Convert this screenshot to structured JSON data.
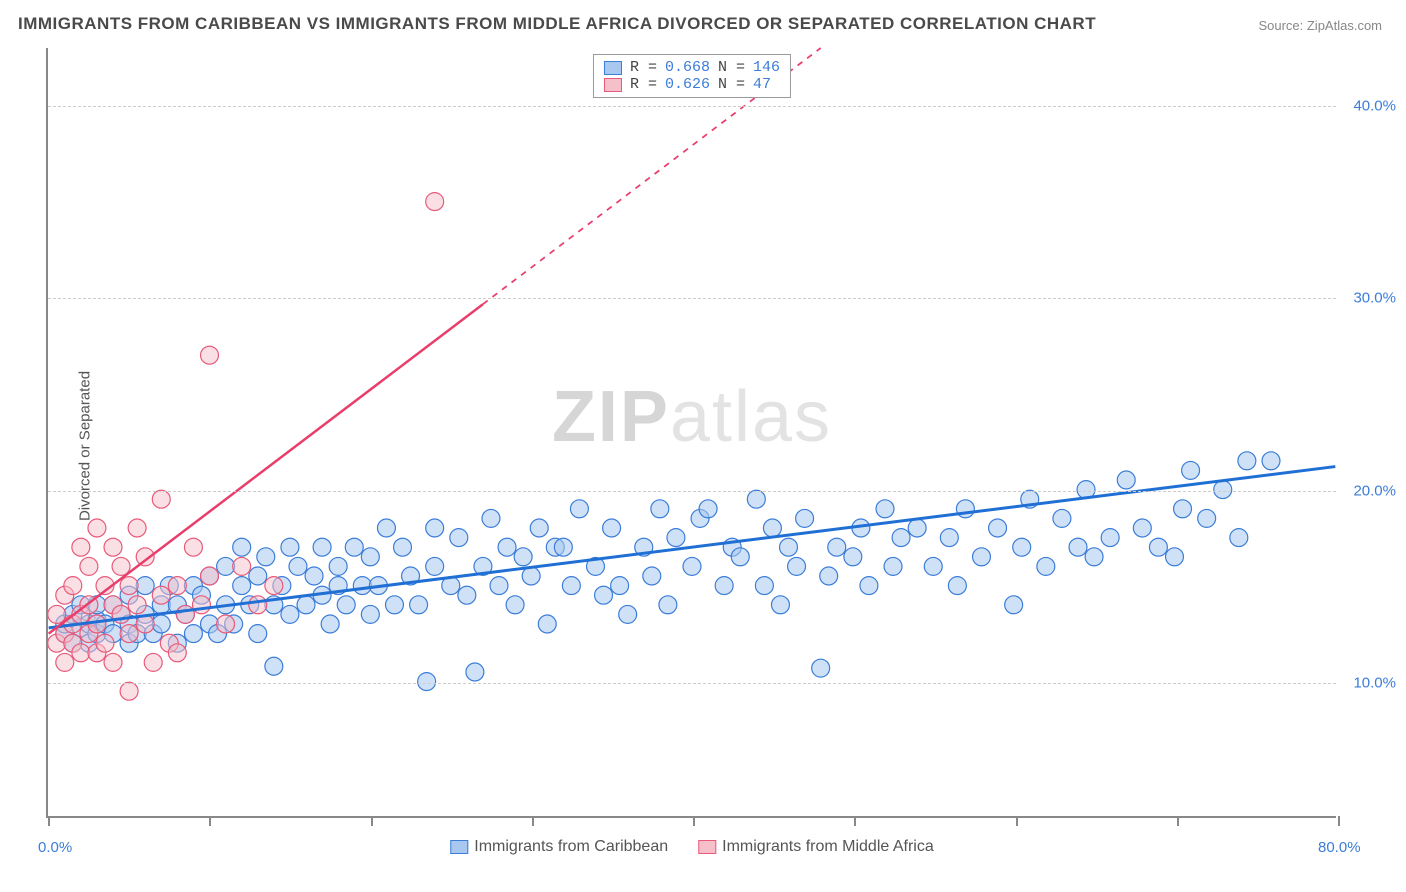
{
  "title": "IMMIGRANTS FROM CARIBBEAN VS IMMIGRANTS FROM MIDDLE AFRICA DIVORCED OR SEPARATED CORRELATION CHART",
  "source": "Source: ZipAtlas.com",
  "ylabel": "Divorced or Separated",
  "watermark_bold": "ZIP",
  "watermark_light": "atlas",
  "chart": {
    "type": "scatter",
    "xlim": [
      0,
      80
    ],
    "ylim": [
      3,
      43
    ],
    "x_ticks": [
      0,
      10,
      20,
      30,
      40,
      50,
      60,
      70,
      80
    ],
    "y_gridlines": [
      10,
      20,
      30,
      40
    ],
    "x_tick_labels": {
      "0": "0.0%",
      "80": "80.0%"
    },
    "y_tick_labels": {
      "10": "10.0%",
      "20": "20.0%",
      "30": "30.0%",
      "40": "40.0%"
    },
    "background_color": "#ffffff",
    "grid_color": "#cccccc",
    "axis_color": "#888888",
    "tick_label_color": "#3b7dd8",
    "title_color": "#4a4a4a",
    "title_fontsize": 17,
    "label_fontsize": 15,
    "series": [
      {
        "name": "Immigrants from Caribbean",
        "color_fill": "#a8c8f0",
        "color_stroke": "#3b7dd8",
        "fill_opacity": 0.55,
        "marker_radius": 9,
        "R": "0.668",
        "N": "146",
        "trend": {
          "x1": 0,
          "y1": 12.8,
          "x2": 80,
          "y2": 21.2,
          "solid_until_x": 80,
          "color": "#1f6fd4",
          "width": 3
        },
        "points": [
          [
            1,
            12.5
          ],
          [
            1,
            13
          ],
          [
            1.5,
            12
          ],
          [
            1.5,
            13.5
          ],
          [
            2,
            12.8
          ],
          [
            2,
            14
          ],
          [
            2.5,
            12
          ],
          [
            2.5,
            13
          ],
          [
            3,
            13.2
          ],
          [
            3,
            12.5
          ],
          [
            3,
            14
          ],
          [
            3.5,
            13
          ],
          [
            4,
            12.5
          ],
          [
            4,
            14
          ],
          [
            4.5,
            13.5
          ],
          [
            5,
            12
          ],
          [
            5,
            14.5
          ],
          [
            5,
            13
          ],
          [
            5.5,
            12.5
          ],
          [
            6,
            13.5
          ],
          [
            6,
            15
          ],
          [
            6.5,
            12.5
          ],
          [
            7,
            14
          ],
          [
            7,
            13
          ],
          [
            7.5,
            15
          ],
          [
            8,
            12
          ],
          [
            8,
            14
          ],
          [
            8.5,
            13.5
          ],
          [
            9,
            15
          ],
          [
            9,
            12.5
          ],
          [
            9.5,
            14.5
          ],
          [
            10,
            13
          ],
          [
            10,
            15.5
          ],
          [
            10.5,
            12.5
          ],
          [
            11,
            14
          ],
          [
            11,
            16
          ],
          [
            11.5,
            13
          ],
          [
            12,
            15
          ],
          [
            12,
            17
          ],
          [
            12.5,
            14
          ],
          [
            13,
            12.5
          ],
          [
            13,
            15.5
          ],
          [
            13.5,
            16.5
          ],
          [
            14,
            14
          ],
          [
            14,
            10.8
          ],
          [
            14.5,
            15
          ],
          [
            15,
            17
          ],
          [
            15,
            13.5
          ],
          [
            15.5,
            16
          ],
          [
            16,
            14
          ],
          [
            16.5,
            15.5
          ],
          [
            17,
            14.5
          ],
          [
            17,
            17
          ],
          [
            17.5,
            13
          ],
          [
            18,
            16
          ],
          [
            18,
            15
          ],
          [
            18.5,
            14
          ],
          [
            19,
            17
          ],
          [
            19.5,
            15
          ],
          [
            20,
            13.5
          ],
          [
            20,
            16.5
          ],
          [
            20.5,
            15
          ],
          [
            21,
            18
          ],
          [
            21.5,
            14
          ],
          [
            22,
            17
          ],
          [
            22.5,
            15.5
          ],
          [
            23,
            14
          ],
          [
            23.5,
            10
          ],
          [
            24,
            16
          ],
          [
            24,
            18
          ],
          [
            25,
            15
          ],
          [
            25.5,
            17.5
          ],
          [
            26,
            14.5
          ],
          [
            26.5,
            10.5
          ],
          [
            27,
            16
          ],
          [
            27.5,
            18.5
          ],
          [
            28,
            15
          ],
          [
            28.5,
            17
          ],
          [
            29,
            14
          ],
          [
            29.5,
            16.5
          ],
          [
            30,
            15.5
          ],
          [
            30.5,
            18
          ],
          [
            31,
            13
          ],
          [
            31.5,
            17
          ],
          [
            32,
            17
          ],
          [
            32.5,
            15
          ],
          [
            33,
            19
          ],
          [
            34,
            16
          ],
          [
            34.5,
            14.5
          ],
          [
            35,
            18
          ],
          [
            35.5,
            15
          ],
          [
            36,
            13.5
          ],
          [
            37,
            17
          ],
          [
            37.5,
            15.5
          ],
          [
            38,
            19
          ],
          [
            38.5,
            14
          ],
          [
            39,
            17.5
          ],
          [
            40,
            16
          ],
          [
            40.5,
            18.5
          ],
          [
            41,
            19
          ],
          [
            42,
            15
          ],
          [
            42.5,
            17
          ],
          [
            43,
            16.5
          ],
          [
            44,
            19.5
          ],
          [
            44.5,
            15
          ],
          [
            45,
            18
          ],
          [
            45.5,
            14
          ],
          [
            46,
            17
          ],
          [
            46.5,
            16
          ],
          [
            47,
            18.5
          ],
          [
            48,
            10.7
          ],
          [
            48.5,
            15.5
          ],
          [
            49,
            17
          ],
          [
            50,
            16.5
          ],
          [
            50.5,
            18
          ],
          [
            51,
            15
          ],
          [
            52,
            19
          ],
          [
            52.5,
            16
          ],
          [
            53,
            17.5
          ],
          [
            54,
            18
          ],
          [
            55,
            16
          ],
          [
            56,
            17.5
          ],
          [
            56.5,
            15
          ],
          [
            57,
            19
          ],
          [
            58,
            16.5
          ],
          [
            59,
            18
          ],
          [
            60,
            14
          ],
          [
            60.5,
            17
          ],
          [
            61,
            19.5
          ],
          [
            62,
            16
          ],
          [
            63,
            18.5
          ],
          [
            64,
            17
          ],
          [
            64.5,
            20
          ],
          [
            65,
            16.5
          ],
          [
            66,
            17.5
          ],
          [
            67,
            20.5
          ],
          [
            68,
            18
          ],
          [
            69,
            17
          ],
          [
            70,
            16.5
          ],
          [
            70.5,
            19
          ],
          [
            71,
            21
          ],
          [
            72,
            18.5
          ],
          [
            73,
            20
          ],
          [
            74,
            17.5
          ],
          [
            74.5,
            21.5
          ],
          [
            76,
            21.5
          ]
        ]
      },
      {
        "name": "Immigrants from Middle Africa",
        "color_fill": "#f5c0ca",
        "color_stroke": "#e85a7a",
        "fill_opacity": 0.5,
        "marker_radius": 9,
        "R": "0.626",
        "N": "47",
        "trend": {
          "x1": 0,
          "y1": 12.5,
          "x2": 48,
          "y2": 43,
          "solid_until_x": 27,
          "color": "#e83e6b",
          "width": 2.5
        },
        "points": [
          [
            0.5,
            12
          ],
          [
            0.5,
            13.5
          ],
          [
            1,
            12.5
          ],
          [
            1,
            14.5
          ],
          [
            1,
            11
          ],
          [
            1.5,
            13
          ],
          [
            1.5,
            15
          ],
          [
            1.5,
            12
          ],
          [
            2,
            13.5
          ],
          [
            2,
            17
          ],
          [
            2,
            11.5
          ],
          [
            2.5,
            14
          ],
          [
            2.5,
            12.5
          ],
          [
            2.5,
            16
          ],
          [
            3,
            13
          ],
          [
            3,
            18
          ],
          [
            3,
            11.5
          ],
          [
            3.5,
            15
          ],
          [
            3.5,
            12
          ],
          [
            4,
            14
          ],
          [
            4,
            17
          ],
          [
            4,
            11
          ],
          [
            4.5,
            13.5
          ],
          [
            4.5,
            16
          ],
          [
            5,
            12.5
          ],
          [
            5,
            15
          ],
          [
            5,
            9.5
          ],
          [
            5.5,
            14
          ],
          [
            5.5,
            18
          ],
          [
            6,
            13
          ],
          [
            6,
            16.5
          ],
          [
            6.5,
            11
          ],
          [
            7,
            19.5
          ],
          [
            7,
            14.5
          ],
          [
            7.5,
            12
          ],
          [
            8,
            15
          ],
          [
            8,
            11.5
          ],
          [
            8.5,
            13.5
          ],
          [
            9,
            17
          ],
          [
            9.5,
            14
          ],
          [
            10,
            15.5
          ],
          [
            10,
            27
          ],
          [
            11,
            13
          ],
          [
            12,
            16
          ],
          [
            13,
            14
          ],
          [
            14,
            15
          ],
          [
            24,
            35
          ]
        ]
      }
    ]
  },
  "legend_top": {
    "rows": [
      {
        "swatch": "blue",
        "r_label": "R = ",
        "r_val": "0.668",
        "n_label": "   N = ",
        "n_val": "146"
      },
      {
        "swatch": "pink",
        "r_label": "R = ",
        "r_val": "0.626",
        "n_label": "   N = ",
        "n_val": " 47"
      }
    ]
  },
  "legend_bottom": {
    "items": [
      {
        "swatch": "blue",
        "label": "Immigrants from Caribbean"
      },
      {
        "swatch": "pink",
        "label": "Immigrants from Middle Africa"
      }
    ]
  }
}
